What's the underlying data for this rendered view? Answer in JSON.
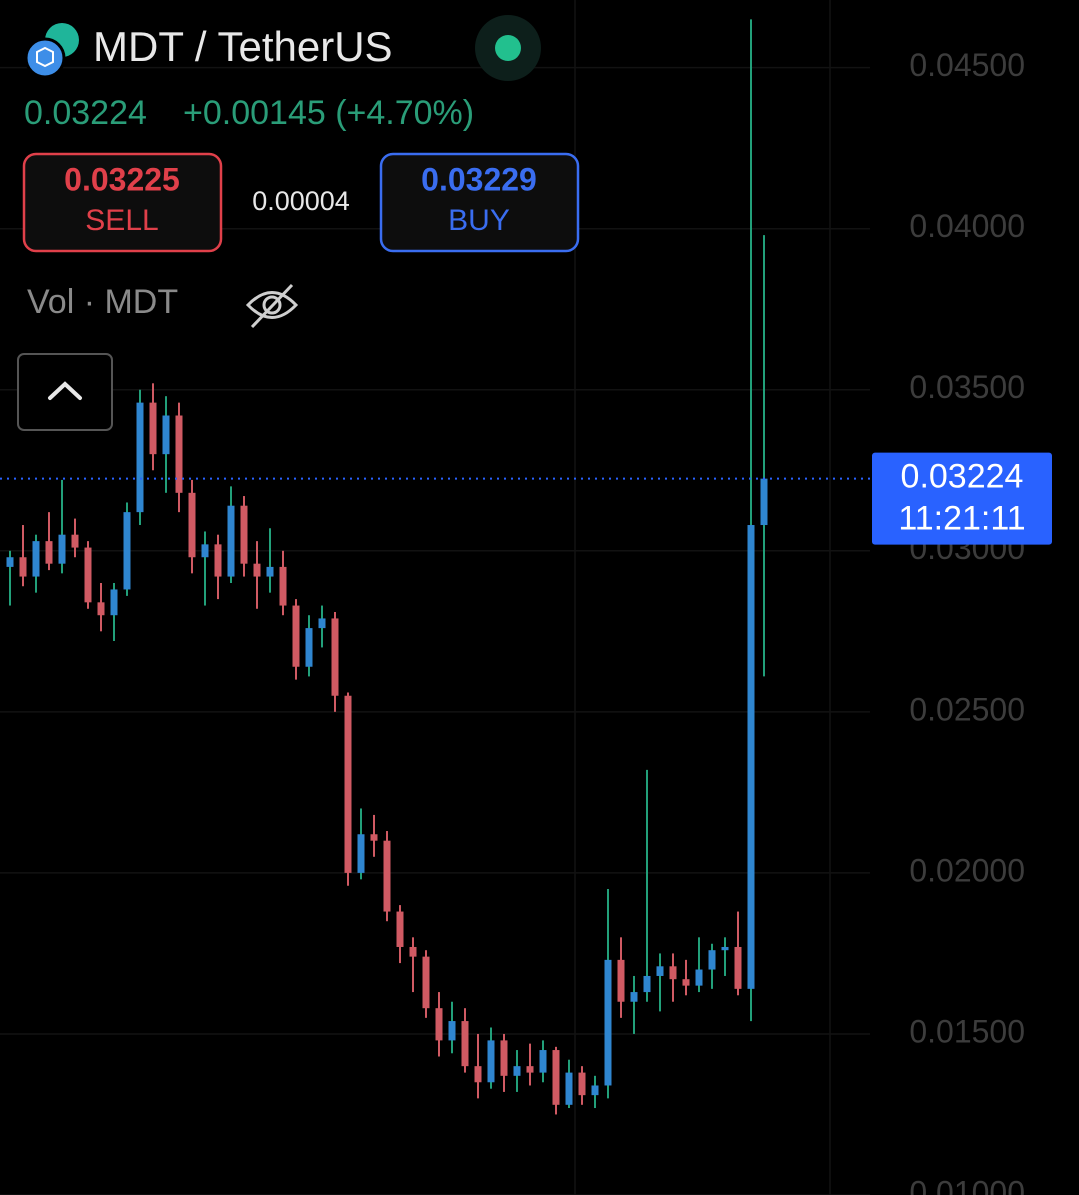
{
  "header": {
    "title": "MDT / TetherUS",
    "last": "0.03224",
    "change": "+0.00145 (+4.70%)",
    "sell_price": "0.03225",
    "sell_label": "SELL",
    "spread": "0.00004",
    "buy_price": "0.03229",
    "buy_label": "BUY",
    "volume_label": "Vol · MDT"
  },
  "chart_data": {
    "type": "candlestick",
    "up_color": "#2f86d0",
    "up_wick_color": "#22a07a",
    "down_color": "#d05a63",
    "open": [
      0.0295,
      0.0298,
      0.0292,
      0.0303,
      0.0296,
      0.0305,
      0.0301,
      0.0284,
      0.028,
      0.0288,
      0.0312,
      0.0346,
      0.033,
      0.0342,
      0.0318,
      0.0298,
      0.0302,
      0.0292,
      0.0314,
      0.0296,
      0.0292,
      0.0295,
      0.0283,
      0.0264,
      0.0276,
      0.0279,
      0.0255,
      0.02,
      0.0212,
      0.021,
      0.0188,
      0.0177,
      0.0174,
      0.0158,
      0.0148,
      0.0154,
      0.014,
      0.0135,
      0.0148,
      0.0137,
      0.014,
      0.0138,
      0.0145,
      0.0128,
      0.0138,
      0.0131,
      0.0134,
      0.0173,
      0.016,
      0.0163,
      0.0168,
      0.0171,
      0.0167,
      0.0165,
      0.017,
      0.0176,
      0.0177,
      0.0164,
      0.0308
    ],
    "high": [
      0.03,
      0.0308,
      0.0305,
      0.0312,
      0.0322,
      0.031,
      0.0303,
      0.029,
      0.029,
      0.0315,
      0.035,
      0.0352,
      0.0348,
      0.0346,
      0.0322,
      0.0306,
      0.0305,
      0.032,
      0.0317,
      0.0303,
      0.0307,
      0.03,
      0.0285,
      0.028,
      0.0283,
      0.0281,
      0.0256,
      0.022,
      0.0218,
      0.0213,
      0.019,
      0.018,
      0.0176,
      0.0163,
      0.016,
      0.0158,
      0.015,
      0.0152,
      0.015,
      0.0145,
      0.0147,
      0.0148,
      0.0146,
      0.0142,
      0.014,
      0.0137,
      0.0195,
      0.018,
      0.0168,
      0.0232,
      0.0175,
      0.0175,
      0.0173,
      0.018,
      0.0178,
      0.018,
      0.0188,
      0.0465,
      0.0398
    ],
    "low": [
      0.0283,
      0.0289,
      0.0287,
      0.0294,
      0.0293,
      0.0298,
      0.0282,
      0.0275,
      0.0272,
      0.0286,
      0.0308,
      0.0325,
      0.0318,
      0.0312,
      0.0293,
      0.0283,
      0.0285,
      0.029,
      0.0292,
      0.0282,
      0.0287,
      0.028,
      0.026,
      0.0261,
      0.027,
      0.025,
      0.0196,
      0.0198,
      0.0205,
      0.0185,
      0.0172,
      0.0163,
      0.0155,
      0.0143,
      0.0144,
      0.0138,
      0.013,
      0.0133,
      0.0132,
      0.0132,
      0.0134,
      0.0135,
      0.0125,
      0.0127,
      0.0128,
      0.0127,
      0.013,
      0.0155,
      0.015,
      0.016,
      0.0157,
      0.016,
      0.0162,
      0.0163,
      0.0164,
      0.0168,
      0.0162,
      0.0154,
      0.0261
    ],
    "close": [
      0.0298,
      0.0292,
      0.0303,
      0.0296,
      0.0305,
      0.0301,
      0.0284,
      0.028,
      0.0288,
      0.0312,
      0.0346,
      0.033,
      0.0342,
      0.0318,
      0.0298,
      0.0302,
      0.0292,
      0.0314,
      0.0296,
      0.0292,
      0.0295,
      0.0283,
      0.0264,
      0.0276,
      0.0279,
      0.0255,
      0.02,
      0.0212,
      0.021,
      0.0188,
      0.0177,
      0.0174,
      0.0158,
      0.0148,
      0.0154,
      0.014,
      0.0135,
      0.0148,
      0.0137,
      0.014,
      0.0138,
      0.0145,
      0.0128,
      0.0138,
      0.0131,
      0.0134,
      0.0173,
      0.016,
      0.0163,
      0.0168,
      0.0171,
      0.0167,
      0.0165,
      0.017,
      0.0176,
      0.0177,
      0.0164,
      0.0308,
      0.03224
    ],
    "ylim": [
      0.01,
      0.0471
    ],
    "yticks": [
      {
        "value": 0.01,
        "label": "0.01000"
      },
      {
        "value": 0.015,
        "label": "0.01500"
      },
      {
        "value": 0.02,
        "label": "0.02000"
      },
      {
        "value": 0.025,
        "label": "0.02500"
      },
      {
        "value": 0.03,
        "label": "0.03000"
      },
      {
        "value": 0.035,
        "label": "0.03500"
      },
      {
        "value": 0.04,
        "label": "0.04000"
      },
      {
        "value": 0.045,
        "label": "0.04500"
      }
    ],
    "grid": true,
    "price_line": {
      "value": 0.03224,
      "label": "0.03224",
      "countdown": "11:21:11",
      "color": "#2962ff"
    }
  }
}
